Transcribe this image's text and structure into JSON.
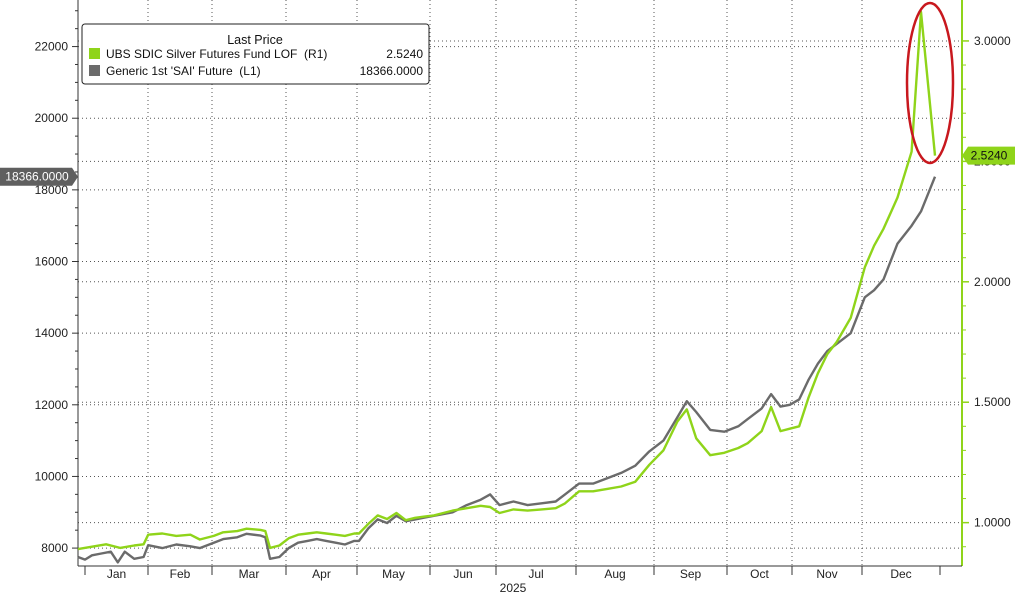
{
  "chart_data": {
    "type": "line",
    "xlabel": "2025",
    "months": [
      "Jan",
      "Feb",
      "Mar",
      "Apr",
      "May",
      "Jun",
      "Jul",
      "Aug",
      "Sep",
      "Oct",
      "Nov",
      "Dec"
    ],
    "left_axis": {
      "ticks": [
        8000,
        10000,
        12000,
        14000,
        16000,
        18000,
        20000,
        22000
      ],
      "range": [
        7500,
        23300
      ]
    },
    "right_axis": {
      "ticks": [
        "1.0000",
        "1.5000",
        "2.0000",
        "2.5000",
        "3.0000"
      ],
      "range": [
        0.82,
        3.17
      ]
    },
    "grid": true,
    "legend": {
      "title": "Last Price",
      "position": "top-left",
      "entries": [
        {
          "name": "UBS SDIC Silver Futures Fund LOF  (R1)",
          "last": "2.5240",
          "color": "#8fd41a"
        },
        {
          "name": "Generic 1st 'SAI' Future  (L1)",
          "last": "18366.0000",
          "color": "#6b6b6b"
        }
      ]
    },
    "last_value_flags": {
      "left": "18366.0000",
      "right": "2.5240"
    },
    "annotation": {
      "shape": "ellipse",
      "color": "#c8181e",
      "marks": "Dec spike in UBS SDIC Silver Futures Fund LOF"
    },
    "series": [
      {
        "name": "Generic 1st 'SAI' Future  (L1)",
        "axis": "left",
        "color": "#6b6b6b",
        "points": [
          [
            0.0,
            7750
          ],
          [
            0.15,
            7680
          ],
          [
            0.3,
            7800
          ],
          [
            0.5,
            7850
          ],
          [
            0.7,
            7900
          ],
          [
            0.85,
            7600
          ],
          [
            1.0,
            7900
          ],
          [
            1.2,
            7700
          ],
          [
            1.4,
            7750
          ],
          [
            1.5,
            8080
          ],
          [
            1.8,
            8000
          ],
          [
            2.1,
            8100
          ],
          [
            2.4,
            8050
          ],
          [
            2.6,
            8000
          ],
          [
            2.9,
            8150
          ],
          [
            3.1,
            8250
          ],
          [
            3.4,
            8300
          ],
          [
            3.6,
            8400
          ],
          [
            3.9,
            8350
          ],
          [
            4.0,
            8300
          ],
          [
            4.1,
            7700
          ],
          [
            4.3,
            7750
          ],
          [
            4.5,
            8000
          ],
          [
            4.7,
            8150
          ],
          [
            4.9,
            8200
          ],
          [
            5.1,
            8250
          ],
          [
            5.3,
            8200
          ],
          [
            5.5,
            8150
          ],
          [
            5.7,
            8100
          ],
          [
            5.9,
            8200
          ],
          [
            6.0,
            8200
          ],
          [
            6.2,
            8550
          ],
          [
            6.4,
            8800
          ],
          [
            6.6,
            8700
          ],
          [
            6.8,
            8900
          ],
          [
            7.0,
            8750
          ],
          [
            7.2,
            8800
          ],
          [
            7.4,
            8850
          ],
          [
            7.6,
            8900
          ],
          [
            7.8,
            8950
          ],
          [
            8.0,
            9000
          ],
          [
            8.3,
            9200
          ],
          [
            8.6,
            9350
          ],
          [
            8.8,
            9500
          ],
          [
            9.0,
            9200
          ],
          [
            9.3,
            9300
          ],
          [
            9.6,
            9200
          ],
          [
            9.9,
            9250
          ],
          [
            10.2,
            9300
          ],
          [
            10.4,
            9500
          ],
          [
            10.7,
            9800
          ],
          [
            11.0,
            9800
          ],
          [
            11.3,
            9950
          ],
          [
            11.6,
            10100
          ],
          [
            11.9,
            10300
          ],
          [
            12.2,
            10700
          ],
          [
            12.5,
            11000
          ],
          [
            12.8,
            11650
          ],
          [
            13.0,
            12100
          ],
          [
            13.2,
            11800
          ],
          [
            13.5,
            11300
          ],
          [
            13.8,
            11250
          ],
          [
            14.1,
            11400
          ],
          [
            14.3,
            11600
          ],
          [
            14.6,
            11900
          ],
          [
            14.8,
            12300
          ],
          [
            15.0,
            11950
          ],
          [
            15.2,
            12000
          ],
          [
            15.4,
            12150
          ],
          [
            15.6,
            12700
          ],
          [
            15.8,
            13150
          ],
          [
            16.0,
            13500
          ],
          [
            16.2,
            13700
          ],
          [
            16.5,
            14000
          ],
          [
            16.8,
            15000
          ],
          [
            17.0,
            15200
          ],
          [
            17.2,
            15500
          ],
          [
            17.5,
            16500
          ],
          [
            17.8,
            17000
          ],
          [
            18.0,
            17400
          ],
          [
            18.3,
            18366
          ]
        ]
      },
      {
        "name": "UBS SDIC Silver Futures Fund LOF  (R1)",
        "axis": "right",
        "color": "#8fd41a",
        "points": [
          [
            0.0,
            0.89
          ],
          [
            0.3,
            0.9
          ],
          [
            0.6,
            0.91
          ],
          [
            0.9,
            0.895
          ],
          [
            1.2,
            0.905
          ],
          [
            1.4,
            0.91
          ],
          [
            1.5,
            0.95
          ],
          [
            1.8,
            0.955
          ],
          [
            2.1,
            0.945
          ],
          [
            2.4,
            0.95
          ],
          [
            2.6,
            0.93
          ],
          [
            2.9,
            0.945
          ],
          [
            3.1,
            0.96
          ],
          [
            3.4,
            0.965
          ],
          [
            3.6,
            0.975
          ],
          [
            3.9,
            0.97
          ],
          [
            4.0,
            0.965
          ],
          [
            4.1,
            0.895
          ],
          [
            4.3,
            0.905
          ],
          [
            4.5,
            0.935
          ],
          [
            4.7,
            0.95
          ],
          [
            4.9,
            0.955
          ],
          [
            5.1,
            0.96
          ],
          [
            5.3,
            0.955
          ],
          [
            5.5,
            0.95
          ],
          [
            5.7,
            0.945
          ],
          [
            5.9,
            0.955
          ],
          [
            6.0,
            0.955
          ],
          [
            6.2,
            0.995
          ],
          [
            6.4,
            1.03
          ],
          [
            6.6,
            1.015
          ],
          [
            6.8,
            1.04
          ],
          [
            7.0,
            1.01
          ],
          [
            7.2,
            1.02
          ],
          [
            7.4,
            1.025
          ],
          [
            7.6,
            1.03
          ],
          [
            7.8,
            1.04
          ],
          [
            8.0,
            1.05
          ],
          [
            8.3,
            1.06
          ],
          [
            8.6,
            1.07
          ],
          [
            8.8,
            1.065
          ],
          [
            9.0,
            1.04
          ],
          [
            9.3,
            1.055
          ],
          [
            9.6,
            1.05
          ],
          [
            9.9,
            1.055
          ],
          [
            10.2,
            1.06
          ],
          [
            10.4,
            1.08
          ],
          [
            10.7,
            1.13
          ],
          [
            11.0,
            1.13
          ],
          [
            11.3,
            1.14
          ],
          [
            11.6,
            1.15
          ],
          [
            11.9,
            1.17
          ],
          [
            12.2,
            1.24
          ],
          [
            12.5,
            1.3
          ],
          [
            12.8,
            1.42
          ],
          [
            13.0,
            1.47
          ],
          [
            13.2,
            1.35
          ],
          [
            13.5,
            1.28
          ],
          [
            13.8,
            1.29
          ],
          [
            14.1,
            1.31
          ],
          [
            14.3,
            1.33
          ],
          [
            14.6,
            1.38
          ],
          [
            14.8,
            1.48
          ],
          [
            15.0,
            1.38
          ],
          [
            15.2,
            1.39
          ],
          [
            15.4,
            1.4
          ],
          [
            15.6,
            1.52
          ],
          [
            15.8,
            1.62
          ],
          [
            16.0,
            1.7
          ],
          [
            16.2,
            1.75
          ],
          [
            16.5,
            1.85
          ],
          [
            16.8,
            2.06
          ],
          [
            17.0,
            2.15
          ],
          [
            17.2,
            2.22
          ],
          [
            17.5,
            2.35
          ],
          [
            17.8,
            2.54
          ],
          [
            18.0,
            3.12
          ],
          [
            18.3,
            2.524
          ]
        ]
      }
    ]
  }
}
